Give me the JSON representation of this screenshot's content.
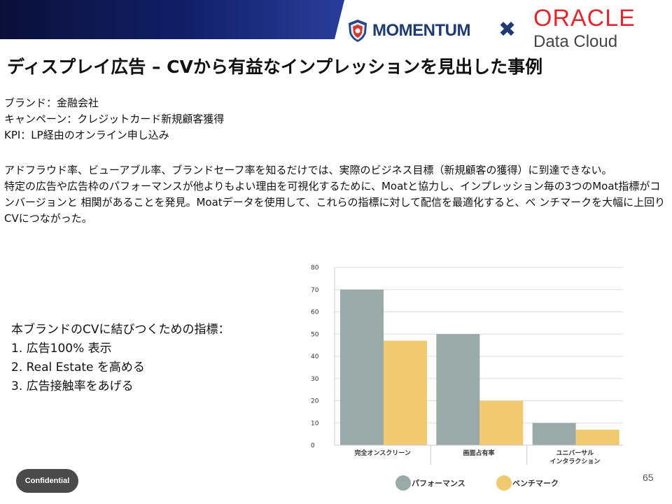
{
  "header": {
    "momentum_logo": "MOMENTUM",
    "times_symbol": "✖",
    "oracle_logo": "ORACLE",
    "oracle_sub": "Data Cloud"
  },
  "colors": {
    "banner_dark": "#0d1240",
    "banner_mid": "#1a2a7a",
    "bar_performance": "#9aaaa9",
    "bar_benchmark": "#f0c970"
  },
  "title": "ディスプレイ広告 – CVから有益なインプレッションを見出した事例",
  "meta": {
    "brand": "ブランド：金融会社",
    "campaign": "キャンペーン：クレジットカード新規顧客獲得",
    "kpi": "KPI：LP経由のオンライン申し込み"
  },
  "body": {
    "para1": "アドフラウド率、ビューアブル率、ブランドセーフ率を知るだけでは、実際のビジネス目標（新規顧客の獲得）に到達できない。",
    "para2": "特定の広告や広告枠のパフォーマンスが他よりもよい理由を可視化するために、Moatと協力し、インプレッション毎の3つのMoat指標がコンバージョンと 相関があることを発見。Moatデータを使用して、これらの指標に対して配信を最適化すると、ベ ンチマークを大幅に上回りCVにつながった。"
  },
  "indicators": {
    "heading": "本ブランドのCVに結びつくための指標：",
    "items": [
      "1. 広告100% 表示",
      "2. Real Estate を高める",
      "3. 広告接触率をあげる"
    ]
  },
  "chart_data": {
    "type": "bar",
    "categories": [
      "完全オンスクリーン",
      "画面占有率",
      "ユニバーサル インタラクション"
    ],
    "category_lines": [
      [
        "完全オンスクリーン"
      ],
      [
        "画面占有率"
      ],
      [
        "ユニバーサル",
        "インタラクション"
      ]
    ],
    "series": [
      {
        "name": "パフォーマンス",
        "values": [
          70,
          50,
          10
        ]
      },
      {
        "name": "ベンチマーク",
        "values": [
          47,
          20,
          7
        ]
      }
    ],
    "ylim": [
      0,
      80
    ],
    "yticks": [
      "0",
      "10",
      "20",
      "30",
      "40",
      "50",
      "60",
      "70",
      "80"
    ],
    "grid": true,
    "legend_position": "bottom",
    "title": "",
    "xlabel": "",
    "ylabel": ""
  },
  "footer": {
    "confidential": "Confidential",
    "page_number": "65"
  }
}
